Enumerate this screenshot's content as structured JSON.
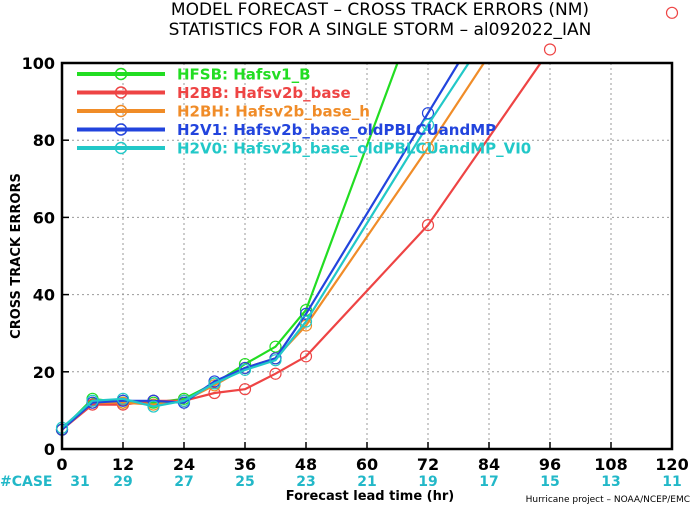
{
  "title_line1": "MODEL FORECAST – CROSS TRACK ERRORS (NM)",
  "title_line2": "STATISTICS FOR A SINGLE STORM – al092022_IAN",
  "credit": "Hurricane project – NOAA/NCEP/EMC",
  "case_label": "#CASE",
  "chart_data": {
    "type": "line",
    "xlabel": "Forecast lead time (hr)",
    "ylabel": "CROSS TRACK ERRORS",
    "xlim": [
      0,
      120
    ],
    "ylim": [
      0,
      100
    ],
    "x_ticks": [
      0,
      12,
      24,
      36,
      48,
      60,
      72,
      84,
      96,
      108,
      120
    ],
    "y_ticks": [
      0,
      20,
      40,
      60,
      80,
      100
    ],
    "grid": true,
    "legend_position": "top-left",
    "cases": [
      31,
      29,
      27,
      25,
      23,
      21,
      19,
      17,
      15,
      13,
      11
    ],
    "series": [
      {
        "code": "HFSB",
        "name": "Hafsv1_B",
        "color": "#22dd22",
        "points": [
          [
            0,
            5
          ],
          [
            6,
            13
          ],
          [
            12,
            12
          ],
          [
            18,
            12
          ],
          [
            24,
            13
          ],
          [
            30,
            17
          ],
          [
            36,
            22
          ],
          [
            42,
            26.5
          ],
          [
            48,
            36
          ]
        ],
        "extend_to": [
          66,
          100
        ],
        "markers": [
          0,
          6,
          12,
          18,
          24,
          30,
          36,
          42,
          48
        ]
      },
      {
        "code": "H2BB",
        "name": "Hafsv2b_base",
        "color": "#ee4444",
        "points": [
          [
            0,
            5
          ],
          [
            6,
            11.5
          ],
          [
            12,
            11.5
          ],
          [
            18,
            12.5
          ],
          [
            24,
            12.5
          ],
          [
            30,
            14.5
          ],
          [
            36,
            15.5
          ],
          [
            42,
            19.5
          ],
          [
            48,
            24
          ],
          [
            72,
            58
          ],
          [
            96,
            103.5
          ]
        ],
        "extend_to": null,
        "markers": [
          0,
          6,
          12,
          18,
          24,
          30,
          36,
          42,
          48,
          72,
          96,
          120
        ],
        "outside_points": [
          [
            120,
            113
          ]
        ]
      },
      {
        "code": "H2BH",
        "name": "Hafsv2b_base_h",
        "color": "#f08c28",
        "points": [
          [
            0,
            5
          ],
          [
            6,
            12
          ],
          [
            12,
            12
          ],
          [
            18,
            11.5
          ],
          [
            24,
            12.5
          ],
          [
            30,
            16.5
          ],
          [
            36,
            21
          ],
          [
            42,
            23.5
          ],
          [
            48,
            32
          ],
          [
            72,
            78
          ]
        ],
        "extend_to": [
          83,
          100
        ],
        "markers": [
          0,
          6,
          12,
          18,
          24,
          30,
          36,
          42,
          48,
          72
        ]
      },
      {
        "code": "H2V1",
        "name": "Hafsv2b_base_oldPBLCUandMP",
        "color": "#2244dd",
        "points": [
          [
            0,
            5
          ],
          [
            6,
            12
          ],
          [
            12,
            12.5
          ],
          [
            18,
            12.5
          ],
          [
            24,
            12
          ],
          [
            30,
            17.5
          ],
          [
            36,
            21
          ],
          [
            42,
            23.5
          ],
          [
            48,
            35
          ],
          [
            72,
            87
          ]
        ],
        "extend_to": [
          78,
          100
        ],
        "markers": [
          0,
          6,
          12,
          18,
          24,
          30,
          36,
          42,
          48,
          72
        ]
      },
      {
        "code": "H2V0",
        "name": "Hafsv2b_base_oldPBLCUandMP_VI0",
        "color": "#22c8c8",
        "points": [
          [
            0,
            5.5
          ],
          [
            6,
            12.5
          ],
          [
            12,
            13
          ],
          [
            18,
            11
          ],
          [
            24,
            12.5
          ],
          [
            30,
            17
          ],
          [
            36,
            20.5
          ],
          [
            42,
            23
          ],
          [
            48,
            33
          ],
          [
            72,
            84
          ]
        ],
        "extend_to": [
          80,
          100
        ],
        "markers": [
          0,
          6,
          12,
          18,
          24,
          30,
          36,
          42,
          48,
          72
        ]
      }
    ]
  }
}
